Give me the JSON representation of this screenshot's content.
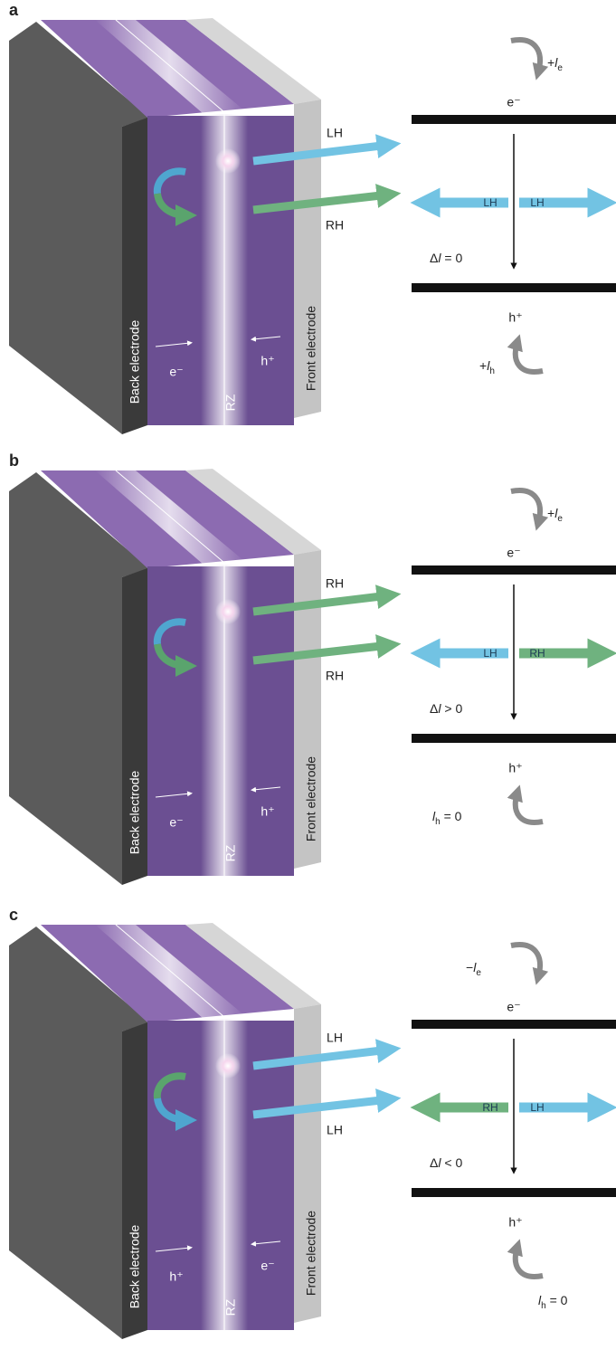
{
  "panels": [
    {
      "label": "a",
      "device": {
        "back": "Back electrode",
        "front": "Front electrode",
        "zone": "RZ",
        "left_carrier": "e⁻",
        "right_carrier": "h⁺",
        "emissions": [
          {
            "label": "LH",
            "color": "#72c3e3"
          },
          {
            "label": "RH",
            "color": "#6fb27f"
          }
        ]
      },
      "levels": {
        "top_carrier": "e⁻",
        "top_momentum": {
          "sign": "+",
          "symbol": "l",
          "subscript": "e"
        },
        "bottom_carrier": "h⁺",
        "bottom_momentum": {
          "sign": "+",
          "symbol": "l",
          "subscript": "h"
        },
        "delta": {
          "prefix": "Δ",
          "symbol": "l",
          "relation": " = 0"
        },
        "left_arrow": {
          "label": "LH",
          "color": "#72c3e3"
        },
        "right_arrow": {
          "label": "LH",
          "color": "#72c3e3"
        }
      }
    },
    {
      "label": "b",
      "device": {
        "back": "Back electrode",
        "front": "Front electrode",
        "zone": "RZ",
        "left_carrier": "e⁻",
        "right_carrier": "h⁺",
        "emissions": [
          {
            "label": "RH",
            "color": "#6fb27f"
          },
          {
            "label": "RH",
            "color": "#6fb27f"
          }
        ]
      },
      "levels": {
        "top_carrier": "e⁻",
        "top_momentum": {
          "sign": "+",
          "symbol": "l",
          "subscript": "e"
        },
        "bottom_carrier": "h⁺",
        "bottom_momentum": {
          "symbol": "l",
          "subscript": "h",
          "relation": " = 0"
        },
        "delta": {
          "prefix": "Δ",
          "symbol": "l",
          "relation": " > 0"
        },
        "left_arrow": {
          "label": "LH",
          "color": "#72c3e3"
        },
        "right_arrow": {
          "label": "RH",
          "color": "#6fb27f"
        }
      }
    },
    {
      "label": "c",
      "device": {
        "back": "Back electrode",
        "front": "Front electrode",
        "zone": "RZ",
        "left_carrier": "h⁺",
        "right_carrier": "e⁻",
        "emissions": [
          {
            "label": "LH",
            "color": "#72c3e3"
          },
          {
            "label": "LH",
            "color": "#72c3e3"
          }
        ]
      },
      "levels": {
        "top_carrier": "e⁻",
        "top_momentum": {
          "sign": "−",
          "symbol": "l",
          "subscript": "e"
        },
        "bottom_carrier": "h⁺",
        "bottom_momentum": {
          "symbol": "l",
          "subscript": "h",
          "relation": " = 0"
        },
        "delta": {
          "prefix": "Δ",
          "symbol": "l",
          "relation": " < 0"
        },
        "left_arrow": {
          "label": "RH",
          "color": "#6fb27f"
        },
        "right_arrow": {
          "label": "LH",
          "color": "#72c3e3"
        }
      }
    }
  ]
}
